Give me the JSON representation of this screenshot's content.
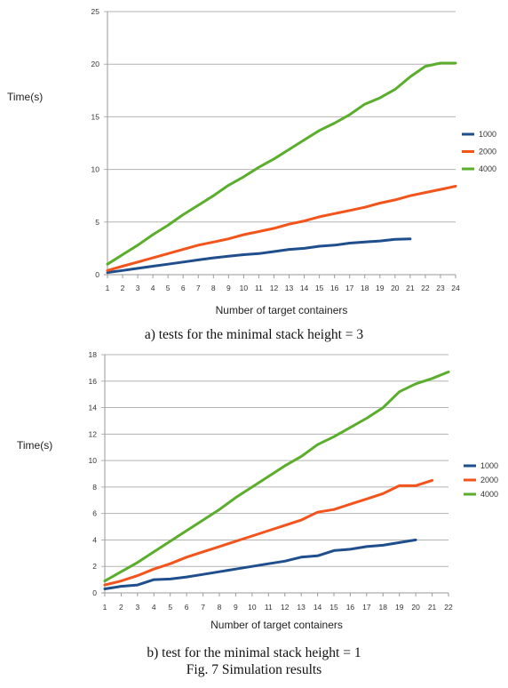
{
  "figure_caption": "Fig. 7 Simulation results",
  "chart_data": [
    {
      "type": "line",
      "caption": "a) tests for the minimal stack height = 3",
      "xlabel": "Number of target containers",
      "ylabel": "Time(s)",
      "ylim": [
        0,
        25
      ],
      "yticks": [
        0,
        5,
        10,
        15,
        20,
        25
      ],
      "xlim": [
        1,
        24
      ],
      "x_tick_labels": [
        "1",
        "2",
        "3",
        "4",
        "5",
        "6",
        "7",
        "8",
        "9",
        "10",
        "11",
        "12",
        "13",
        "14",
        "15",
        "16",
        "17",
        "18",
        "19",
        "20",
        "21",
        "22",
        "23",
        "24"
      ],
      "grid": "horizontal",
      "legend_position": "right",
      "series": [
        {
          "name": "1000",
          "color": "#1f4e8c",
          "x": [
            1,
            2,
            3,
            4,
            5,
            6,
            7,
            8,
            9,
            10,
            11,
            12,
            13,
            14,
            15,
            16,
            17,
            18,
            19,
            20,
            21
          ],
          "y": [
            0.2,
            0.4,
            0.6,
            0.8,
            1.0,
            1.2,
            1.4,
            1.6,
            1.75,
            1.9,
            2.0,
            2.2,
            2.4,
            2.5,
            2.7,
            2.8,
            3.0,
            3.1,
            3.2,
            3.35,
            3.4
          ]
        },
        {
          "name": "2000",
          "color": "#f2541b",
          "x": [
            1,
            2,
            3,
            4,
            5,
            6,
            7,
            8,
            9,
            10,
            11,
            12,
            13,
            14,
            15,
            16,
            17,
            18,
            19,
            20,
            21,
            22,
            23,
            24
          ],
          "y": [
            0.4,
            0.8,
            1.2,
            1.6,
            2.0,
            2.4,
            2.8,
            3.1,
            3.4,
            3.8,
            4.1,
            4.4,
            4.8,
            5.1,
            5.5,
            5.8,
            6.1,
            6.4,
            6.8,
            7.1,
            7.5,
            7.8,
            8.1,
            8.4
          ]
        },
        {
          "name": "4000",
          "color": "#5aae2c",
          "x": [
            1,
            2,
            3,
            4,
            5,
            6,
            7,
            8,
            9,
            10,
            11,
            12,
            13,
            14,
            15,
            16,
            17,
            18,
            19,
            20,
            21,
            22,
            23,
            24
          ],
          "y": [
            1.0,
            1.9,
            2.8,
            3.8,
            4.7,
            5.7,
            6.6,
            7.5,
            8.5,
            9.3,
            10.2,
            11.0,
            11.9,
            12.8,
            13.7,
            14.4,
            15.2,
            16.2,
            16.8,
            17.6,
            18.8,
            19.8,
            20.1,
            20.1
          ]
        }
      ]
    },
    {
      "type": "line",
      "caption": "b) test for the minimal stack height = 1",
      "xlabel": "Number of target containers",
      "ylabel": "Time(s)",
      "ylim": [
        0,
        18
      ],
      "yticks": [
        0,
        2,
        4,
        6,
        8,
        10,
        12,
        14,
        16,
        18
      ],
      "xlim": [
        1,
        22
      ],
      "x_tick_labels": [
        "1",
        "2",
        "3",
        "4",
        "5",
        "6",
        "7",
        "8",
        "9",
        "10",
        "11",
        "12",
        "13",
        "14",
        "15",
        "16",
        "17",
        "18",
        "19",
        "20",
        "21",
        "22"
      ],
      "grid": "horizontal",
      "legend_position": "right",
      "series": [
        {
          "name": "1000",
          "color": "#1f4e8c",
          "x": [
            1,
            2,
            3,
            4,
            5,
            6,
            7,
            8,
            9,
            10,
            11,
            12,
            13,
            14,
            15,
            16,
            17,
            18,
            19,
            20
          ],
          "y": [
            0.3,
            0.5,
            0.6,
            1.0,
            1.05,
            1.2,
            1.4,
            1.6,
            1.8,
            2.0,
            2.2,
            2.4,
            2.7,
            2.8,
            3.2,
            3.3,
            3.5,
            3.6,
            3.8,
            4.0
          ]
        },
        {
          "name": "2000",
          "color": "#f2541b",
          "x": [
            1,
            2,
            3,
            4,
            5,
            6,
            7,
            8,
            9,
            10,
            11,
            12,
            13,
            14,
            15,
            16,
            17,
            18,
            19,
            20,
            21
          ],
          "y": [
            0.6,
            0.9,
            1.3,
            1.8,
            2.2,
            2.7,
            3.1,
            3.5,
            3.9,
            4.3,
            4.7,
            5.1,
            5.5,
            6.1,
            6.3,
            6.7,
            7.1,
            7.5,
            8.1,
            8.1,
            8.5
          ]
        },
        {
          "name": "4000",
          "color": "#5aae2c",
          "x": [
            1,
            2,
            3,
            4,
            5,
            6,
            7,
            8,
            9,
            10,
            11,
            12,
            13,
            14,
            15,
            16,
            17,
            18,
            19,
            20,
            21,
            22
          ],
          "y": [
            0.9,
            1.6,
            2.3,
            3.1,
            3.9,
            4.7,
            5.5,
            6.3,
            7.2,
            8.0,
            8.8,
            9.6,
            10.3,
            11.2,
            11.8,
            12.5,
            13.2,
            14.0,
            15.2,
            15.8,
            16.2,
            16.7
          ]
        }
      ]
    }
  ]
}
